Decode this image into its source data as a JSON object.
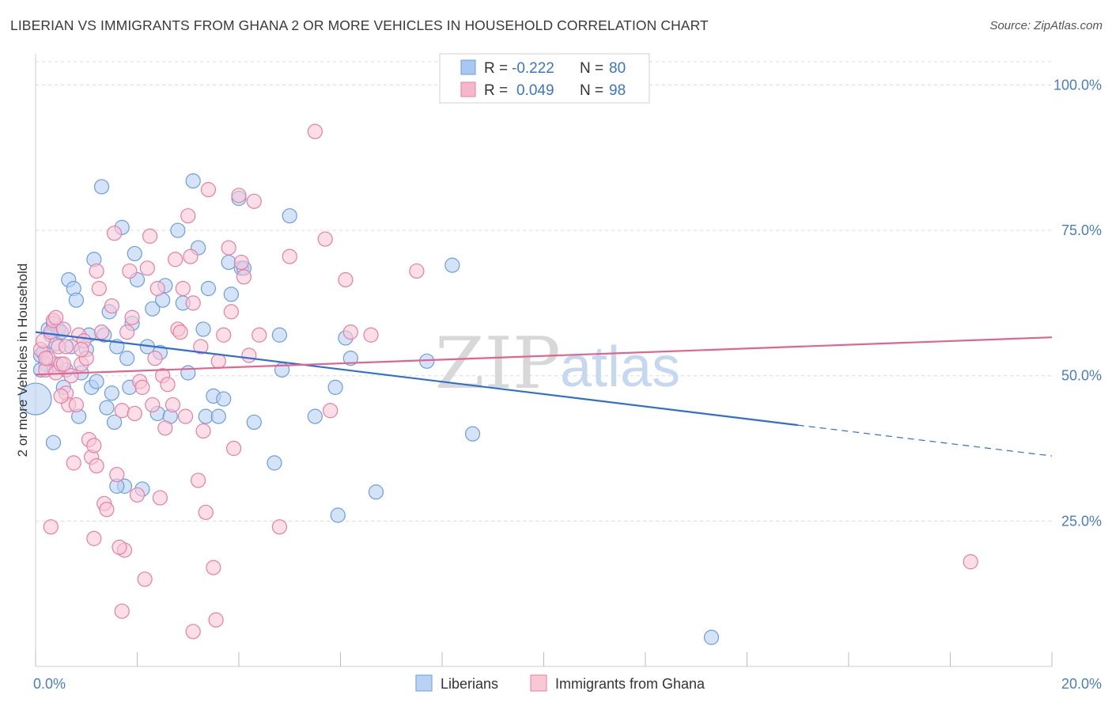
{
  "title": "LIBERIAN VS IMMIGRANTS FROM GHANA 2 OR MORE VEHICLES IN HOUSEHOLD CORRELATION CHART",
  "source": "Source: ZipAtlas.com",
  "watermark": {
    "zip": "ZIP",
    "atlas": "atlas"
  },
  "legend": {
    "rows": [
      {
        "r_label": "R =",
        "r_value": "-0.222",
        "n_label": "N =",
        "n_value": "80",
        "color": "#a9c7f0"
      },
      {
        "r_label": "R =",
        "r_value": "0.049",
        "n_label": "N =",
        "n_value": "98",
        "color": "#f5b7cb"
      }
    ]
  },
  "bottom_legend": [
    "Liberians",
    "Immigrants from Ghana"
  ],
  "chart_data": {
    "type": "scatter",
    "xlabel": "",
    "ylabel": "2 or more Vehicles in Household",
    "xlim": [
      0,
      20
    ],
    "ylim": [
      0,
      104
    ],
    "x_tick_labels": [
      "0.0%",
      "20.0%"
    ],
    "y_tick_labels": [
      "25.0%",
      "50.0%",
      "75.0%",
      "100.0%"
    ],
    "y_ticks": [
      25,
      50,
      75,
      100
    ],
    "grid": true,
    "series": [
      {
        "name": "Liberians",
        "color": "#6a9ee0",
        "fill": "#b9d1f2",
        "trend": {
          "x0": 0,
          "y0": 57.5,
          "x1": 15.0,
          "y1": 41.5,
          "dash_to_x": 20,
          "dash_to_y": 36.2
        },
        "points": [
          [
            0.0,
            46
          ],
          [
            0.1,
            53.5
          ],
          [
            0.15,
            54
          ],
          [
            0.2,
            52
          ],
          [
            0.25,
            58
          ],
          [
            0.3,
            57
          ],
          [
            0.35,
            59
          ],
          [
            0.4,
            55.5
          ],
          [
            0.45,
            58
          ],
          [
            0.5,
            57.5
          ],
          [
            0.55,
            48
          ],
          [
            0.6,
            51
          ],
          [
            0.65,
            66.5
          ],
          [
            0.7,
            55
          ],
          [
            0.75,
            65
          ],
          [
            0.8,
            63
          ],
          [
            0.85,
            43
          ],
          [
            0.9,
            50.5
          ],
          [
            1.0,
            54.5
          ],
          [
            1.05,
            57
          ],
          [
            1.1,
            48
          ],
          [
            1.15,
            70
          ],
          [
            1.2,
            49
          ],
          [
            1.3,
            82.5
          ],
          [
            1.35,
            57
          ],
          [
            1.4,
            44.5
          ],
          [
            1.45,
            61
          ],
          [
            1.5,
            47
          ],
          [
            1.55,
            42
          ],
          [
            1.6,
            55
          ],
          [
            1.7,
            75.5
          ],
          [
            1.75,
            31
          ],
          [
            1.8,
            53
          ],
          [
            1.85,
            48
          ],
          [
            1.9,
            59
          ],
          [
            1.95,
            71
          ],
          [
            2.0,
            66.5
          ],
          [
            2.1,
            30.5
          ],
          [
            2.2,
            55
          ],
          [
            2.3,
            61.5
          ],
          [
            2.4,
            43.5
          ],
          [
            2.45,
            54
          ],
          [
            2.5,
            63
          ],
          [
            2.55,
            65.5
          ],
          [
            2.65,
            43
          ],
          [
            2.8,
            75
          ],
          [
            2.9,
            62.5
          ],
          [
            3.0,
            50.5
          ],
          [
            3.1,
            83.5
          ],
          [
            3.2,
            72
          ],
          [
            3.3,
            58
          ],
          [
            3.35,
            43
          ],
          [
            3.4,
            65
          ],
          [
            3.5,
            46.5
          ],
          [
            3.6,
            43
          ],
          [
            3.7,
            46
          ],
          [
            3.8,
            69.5
          ],
          [
            3.85,
            64
          ],
          [
            4.0,
            80.5
          ],
          [
            4.05,
            68.5
          ],
          [
            4.1,
            68.5
          ],
          [
            4.3,
            42
          ],
          [
            4.7,
            35
          ],
          [
            4.8,
            57
          ],
          [
            4.85,
            51
          ],
          [
            5.0,
            77.5
          ],
          [
            5.5,
            43
          ],
          [
            5.9,
            48
          ],
          [
            5.95,
            26
          ],
          [
            6.1,
            56.5
          ],
          [
            6.2,
            53
          ],
          [
            6.7,
            30
          ],
          [
            7.7,
            52.5
          ],
          [
            0.35,
            38.5
          ],
          [
            0.4,
            52
          ],
          [
            8.2,
            69
          ],
          [
            8.6,
            40
          ],
          [
            13.3,
            5
          ],
          [
            1.6,
            31
          ],
          [
            0.1,
            51
          ]
        ]
      },
      {
        "name": "Immigrants from Ghana",
        "color": "#e87ea2",
        "fill": "#f8c8d7",
        "trend": {
          "x0": 0,
          "y0": 50.2,
          "x1": 20,
          "y1": 56.6
        },
        "points": [
          [
            0.1,
            54.5
          ],
          [
            0.15,
            56
          ],
          [
            0.2,
            51
          ],
          [
            0.25,
            53
          ],
          [
            0.3,
            57.5
          ],
          [
            0.35,
            59.5
          ],
          [
            0.4,
            50.5
          ],
          [
            0.45,
            55
          ],
          [
            0.5,
            52
          ],
          [
            0.55,
            58
          ],
          [
            0.6,
            47
          ],
          [
            0.65,
            45
          ],
          [
            0.7,
            50
          ],
          [
            0.75,
            35
          ],
          [
            0.8,
            45
          ],
          [
            0.85,
            57
          ],
          [
            0.9,
            52
          ],
          [
            0.95,
            56
          ],
          [
            1.0,
            53
          ],
          [
            1.05,
            39
          ],
          [
            1.1,
            36
          ],
          [
            1.15,
            38
          ],
          [
            1.2,
            34.5
          ],
          [
            1.25,
            65
          ],
          [
            1.3,
            57.5
          ],
          [
            1.35,
            28
          ],
          [
            1.4,
            27
          ],
          [
            1.5,
            62
          ],
          [
            1.55,
            74.5
          ],
          [
            1.6,
            33
          ],
          [
            1.7,
            44
          ],
          [
            1.75,
            20
          ],
          [
            1.8,
            57.5
          ],
          [
            1.85,
            68
          ],
          [
            1.9,
            60
          ],
          [
            1.95,
            43.5
          ],
          [
            2.0,
            29.5
          ],
          [
            2.05,
            49
          ],
          [
            2.1,
            48
          ],
          [
            2.15,
            15
          ],
          [
            2.2,
            68.5
          ],
          [
            2.25,
            74
          ],
          [
            2.3,
            45
          ],
          [
            2.35,
            53
          ],
          [
            2.4,
            65
          ],
          [
            2.5,
            50
          ],
          [
            2.55,
            41
          ],
          [
            2.6,
            48.5
          ],
          [
            2.7,
            45
          ],
          [
            2.75,
            70
          ],
          [
            2.8,
            58
          ],
          [
            2.85,
            57.5
          ],
          [
            2.9,
            65
          ],
          [
            3.0,
            77.5
          ],
          [
            3.05,
            70.5
          ],
          [
            3.1,
            62.5
          ],
          [
            3.2,
            32
          ],
          [
            3.3,
            40.5
          ],
          [
            3.35,
            26.5
          ],
          [
            3.4,
            82
          ],
          [
            3.5,
            17
          ],
          [
            3.55,
            8
          ],
          [
            3.6,
            52.5
          ],
          [
            3.7,
            57
          ],
          [
            3.8,
            72
          ],
          [
            3.85,
            61
          ],
          [
            3.9,
            37.5
          ],
          [
            4.0,
            81
          ],
          [
            4.05,
            69.5
          ],
          [
            4.1,
            67
          ],
          [
            4.2,
            53.5
          ],
          [
            4.3,
            80
          ],
          [
            4.4,
            57
          ],
          [
            4.8,
            24
          ],
          [
            5.0,
            70.5
          ],
          [
            5.5,
            92
          ],
          [
            5.7,
            73.5
          ],
          [
            5.8,
            44
          ],
          [
            6.1,
            66.5
          ],
          [
            6.2,
            57.5
          ],
          [
            6.6,
            57
          ],
          [
            7.5,
            68
          ],
          [
            0.3,
            24
          ],
          [
            1.7,
            9.5
          ],
          [
            3.1,
            6
          ],
          [
            18.4,
            18
          ],
          [
            0.5,
            46.5
          ],
          [
            0.9,
            54.5
          ],
          [
            1.2,
            68
          ],
          [
            1.65,
            20.5
          ],
          [
            2.45,
            29
          ],
          [
            0.2,
            53
          ],
          [
            0.55,
            52
          ],
          [
            0.6,
            55
          ],
          [
            2.95,
            43
          ],
          [
            3.25,
            55
          ],
          [
            1.15,
            22
          ],
          [
            0.4,
            60
          ]
        ]
      }
    ]
  }
}
